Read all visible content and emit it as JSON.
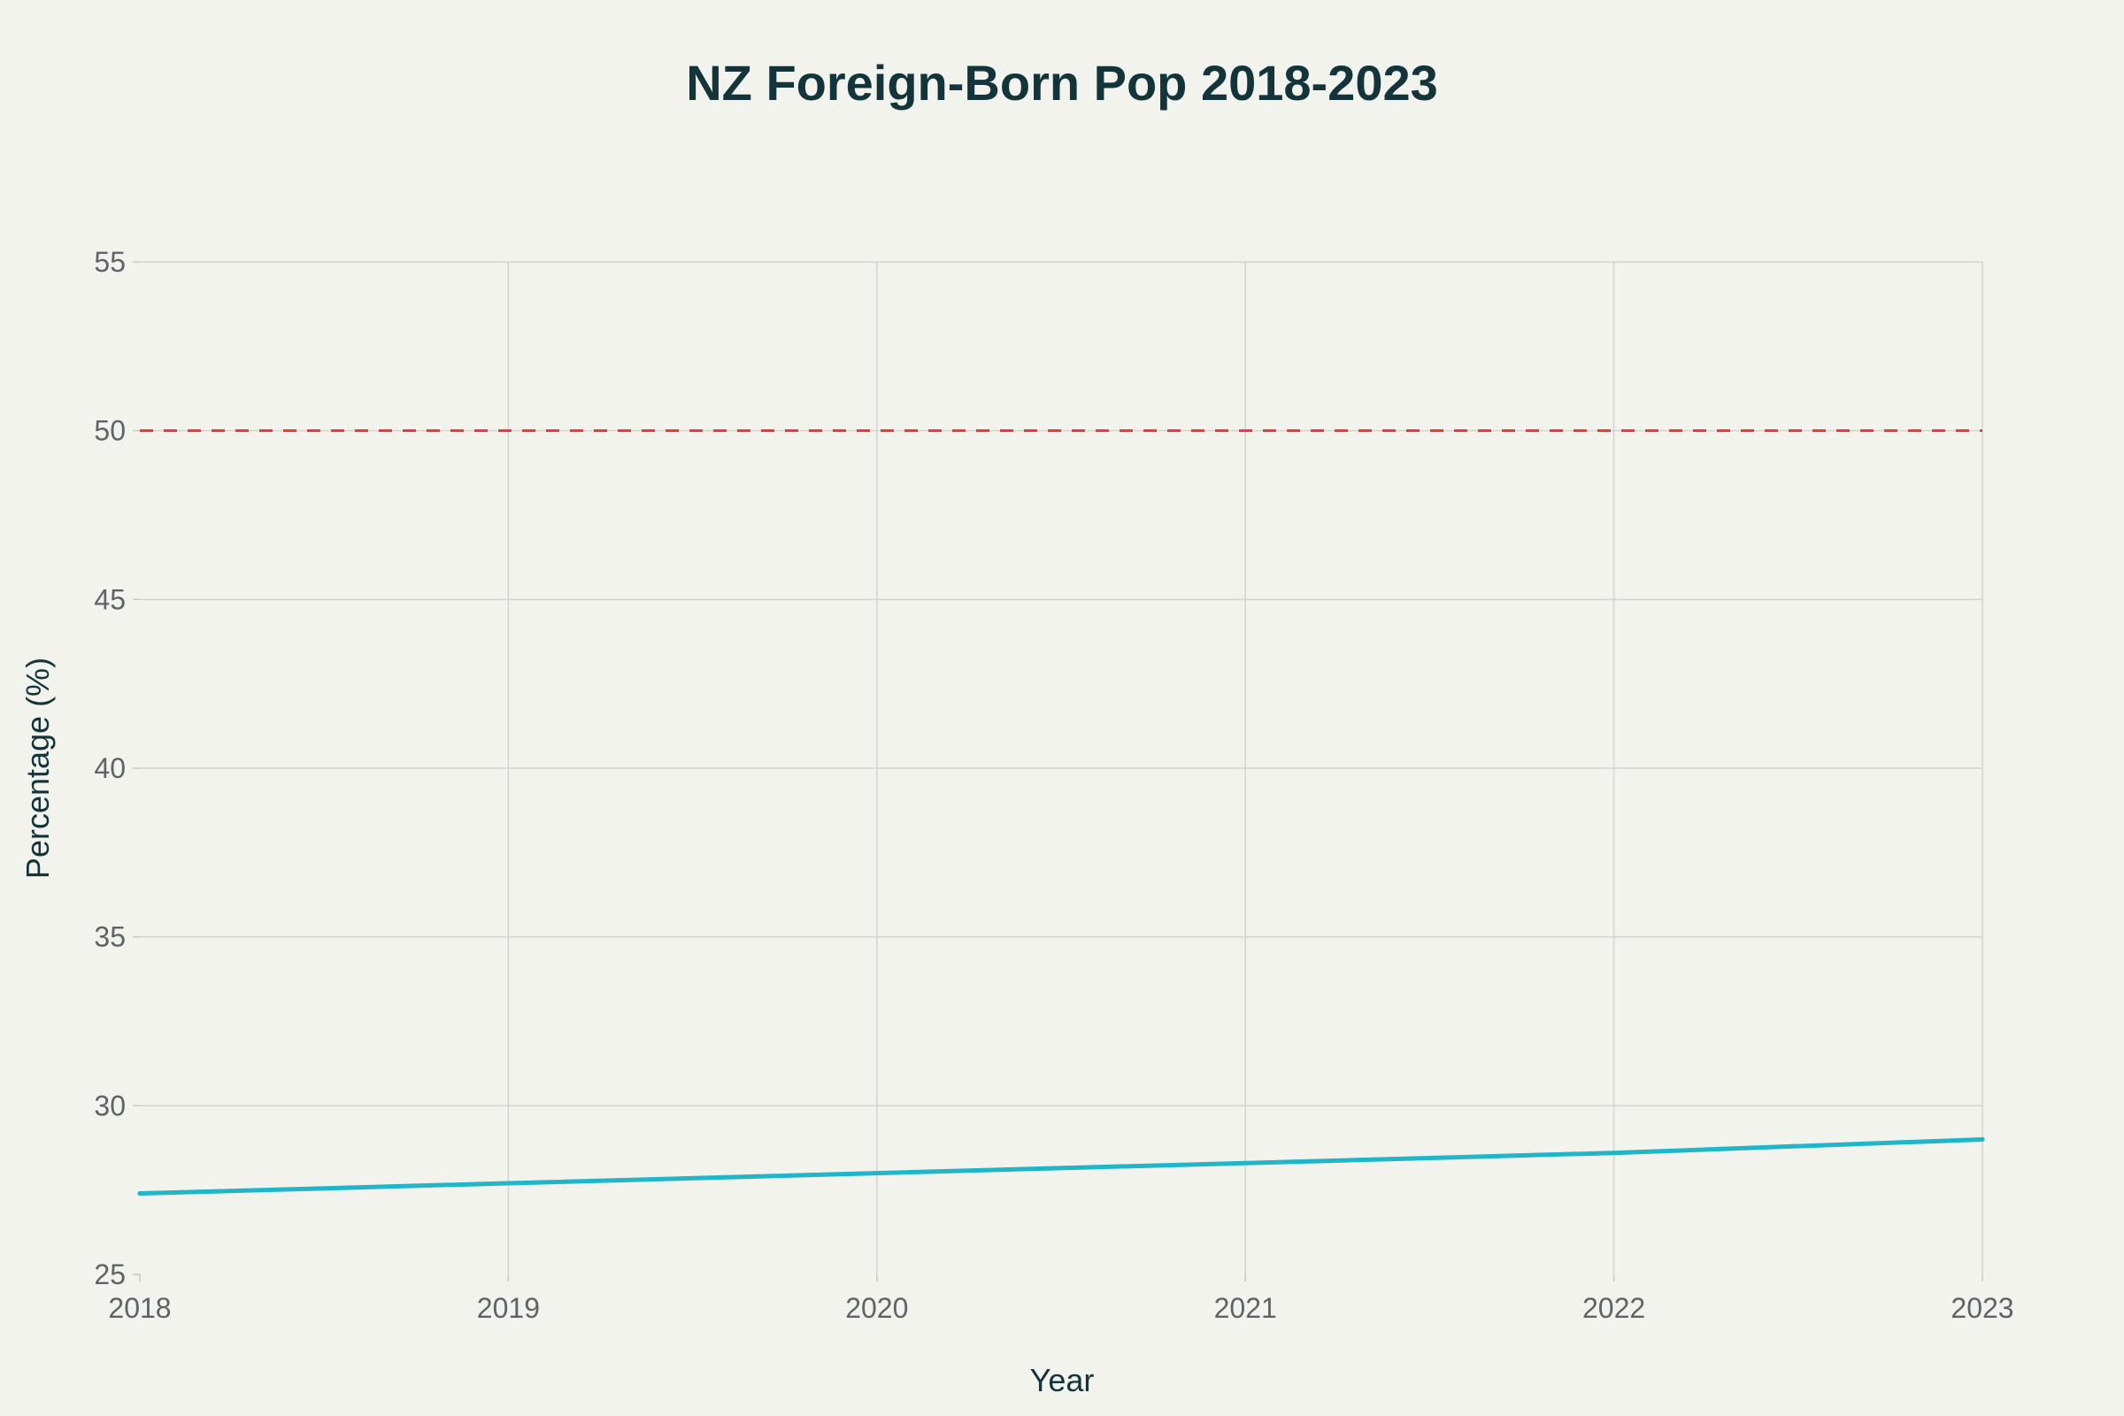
{
  "page": {
    "background": "#f3f3ee"
  },
  "chart_data": {
    "type": "line",
    "title": "NZ Foreign-Born Pop 2018-2023",
    "xlabel": "Year",
    "ylabel": "Percentage (%)",
    "x": [
      2018,
      2019,
      2020,
      2021,
      2022,
      2023
    ],
    "x_tick_labels": [
      "2018",
      "2019",
      "2020",
      "2021",
      "2022",
      "2023"
    ],
    "xlim": [
      2018,
      2023
    ],
    "ylim": [
      25,
      55
    ],
    "y_ticks": [
      25,
      30,
      35,
      40,
      45,
      50,
      55
    ],
    "y_tick_labels": [
      "25",
      "30",
      "35",
      "40",
      "45",
      "50",
      "55"
    ],
    "grid": true,
    "legend": "none",
    "series": [
      {
        "values": [
          27.4,
          27.7,
          28.0,
          28.3,
          28.6,
          29.0
        ],
        "color": "#21b5c8",
        "style": "solid"
      }
    ],
    "reference_lines": [
      {
        "y": 50,
        "color": "#e03b3b",
        "style": "dashed"
      }
    ],
    "colors": {
      "title": "#13343b",
      "axis_title": "#13343b",
      "tick_label": "#5f6368",
      "grid": "#d3d3d0",
      "axis_tick": "#c7c7c4"
    }
  }
}
